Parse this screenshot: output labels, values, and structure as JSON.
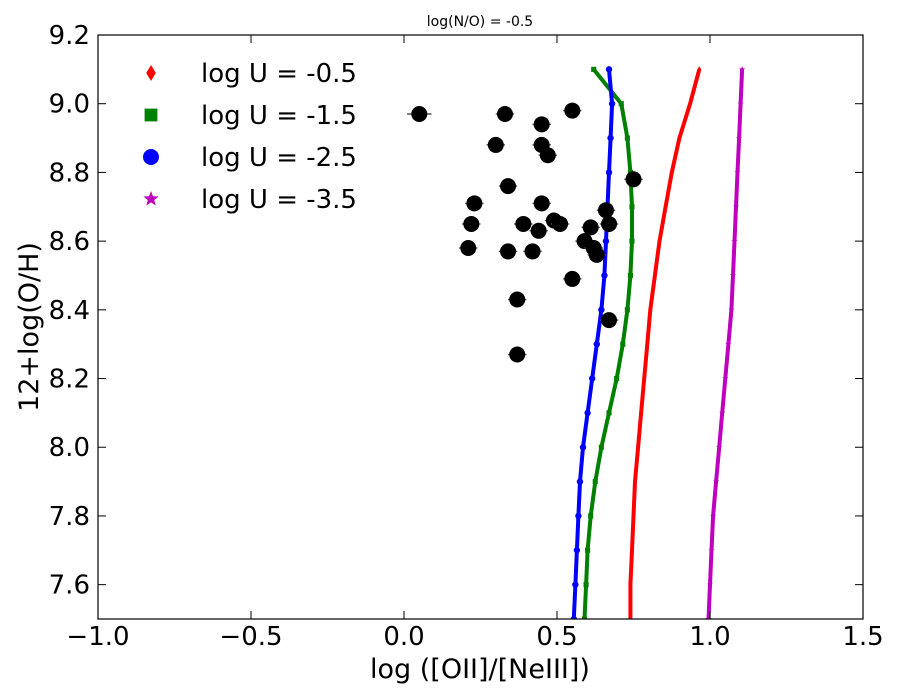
{
  "chart_data": {
    "type": "line",
    "title": "log(N/O) = -0.5",
    "xlabel": "log ([OII]/[NeIII])",
    "ylabel": "12+log(O/H)",
    "xlim": [
      -1.0,
      1.5
    ],
    "ylim": [
      7.5,
      9.2
    ],
    "xticks": [
      -1.0,
      -0.5,
      0.0,
      0.5,
      1.0,
      1.5
    ],
    "xtick_labels": [
      "−1.0",
      "−0.5",
      "0.0",
      "0.5",
      "1.0",
      "1.5"
    ],
    "yticks": [
      7.6,
      7.8,
      8.0,
      8.2,
      8.4,
      8.6,
      8.8,
      9.0,
      9.2
    ],
    "ytick_labels": [
      "7.6",
      "7.8",
      "8.0",
      "8.2",
      "8.4",
      "8.6",
      "8.8",
      "9.0",
      "9.2"
    ],
    "grid": false,
    "legend_position": "top-left",
    "y_grid": [
      7.5,
      7.6,
      7.7,
      7.8,
      7.9,
      8.0,
      8.1,
      8.2,
      8.3,
      8.4,
      8.5,
      8.6,
      8.7,
      8.8,
      8.9,
      9.0,
      9.1
    ],
    "series": [
      {
        "name": "log U = -0.5",
        "color": "#ff0000",
        "marker": "diamond",
        "x": [
          0.74,
          0.74,
          0.745,
          0.75,
          0.755,
          0.765,
          0.775,
          0.785,
          0.795,
          0.805,
          0.82,
          0.835,
          0.855,
          0.875,
          0.9,
          0.935,
          0.965
        ]
      },
      {
        "name": "log U = -1.5",
        "color": "#008000",
        "marker": "square",
        "x": [
          0.59,
          0.595,
          0.6,
          0.61,
          0.625,
          0.645,
          0.67,
          0.695,
          0.715,
          0.73,
          0.74,
          0.745,
          0.745,
          0.74,
          0.73,
          0.71,
          0.62
        ]
      },
      {
        "name": "log U = -2.5",
        "color": "#0000ff",
        "marker": "circle",
        "x": [
          0.555,
          0.56,
          0.565,
          0.57,
          0.575,
          0.585,
          0.6,
          0.615,
          0.63,
          0.645,
          0.655,
          0.66,
          0.665,
          0.67,
          0.675,
          0.68,
          0.67
        ]
      },
      {
        "name": "log U = -3.5",
        "color": "#bf00bf",
        "marker": "star",
        "x": [
          0.995,
          1.0,
          1.005,
          1.01,
          1.02,
          1.03,
          1.04,
          1.05,
          1.06,
          1.07,
          1.075,
          1.08,
          1.085,
          1.09,
          1.095,
          1.1,
          1.105
        ]
      }
    ],
    "observations": {
      "name": "data points",
      "color": "#000000",
      "points": [
        {
          "x": 0.05,
          "y": 8.97,
          "xerr": 0.04
        },
        {
          "x": 0.33,
          "y": 8.97,
          "xerr": 0.03
        },
        {
          "x": 0.55,
          "y": 8.98,
          "xerr": 0.03
        },
        {
          "x": 0.45,
          "y": 8.94,
          "xerr": 0.03
        },
        {
          "x": 0.3,
          "y": 8.88,
          "xerr": 0.03
        },
        {
          "x": 0.45,
          "y": 8.88,
          "xerr": 0.03
        },
        {
          "x": 0.47,
          "y": 8.85,
          "xerr": 0.03
        },
        {
          "x": 0.75,
          "y": 8.78,
          "xerr": 0.03
        },
        {
          "x": 0.34,
          "y": 8.76,
          "xerr": 0.03
        },
        {
          "x": 0.23,
          "y": 8.71,
          "xerr": 0.03
        },
        {
          "x": 0.45,
          "y": 8.71,
          "xerr": 0.03
        },
        {
          "x": 0.66,
          "y": 8.69,
          "xerr": 0.03
        },
        {
          "x": 0.22,
          "y": 8.65,
          "xerr": 0.03
        },
        {
          "x": 0.39,
          "y": 8.65,
          "xerr": 0.03
        },
        {
          "x": 0.49,
          "y": 8.66,
          "xerr": 0.03
        },
        {
          "x": 0.51,
          "y": 8.65,
          "xerr": 0.03
        },
        {
          "x": 0.67,
          "y": 8.65,
          "xerr": 0.03
        },
        {
          "x": 0.61,
          "y": 8.64,
          "xerr": 0.03
        },
        {
          "x": 0.44,
          "y": 8.63,
          "xerr": 0.03
        },
        {
          "x": 0.59,
          "y": 8.6,
          "xerr": 0.03
        },
        {
          "x": 0.62,
          "y": 8.58,
          "xerr": 0.03
        },
        {
          "x": 0.21,
          "y": 8.58,
          "xerr": 0.03
        },
        {
          "x": 0.34,
          "y": 8.57,
          "xerr": 0.03
        },
        {
          "x": 0.42,
          "y": 8.57,
          "xerr": 0.03
        },
        {
          "x": 0.63,
          "y": 8.56,
          "xerr": 0.03
        },
        {
          "x": 0.55,
          "y": 8.49,
          "xerr": 0.03
        },
        {
          "x": 0.37,
          "y": 8.43,
          "xerr": 0.03
        },
        {
          "x": 0.67,
          "y": 8.37,
          "xerr": 0.03
        },
        {
          "x": 0.37,
          "y": 8.27,
          "xerr": 0.03
        }
      ]
    }
  }
}
